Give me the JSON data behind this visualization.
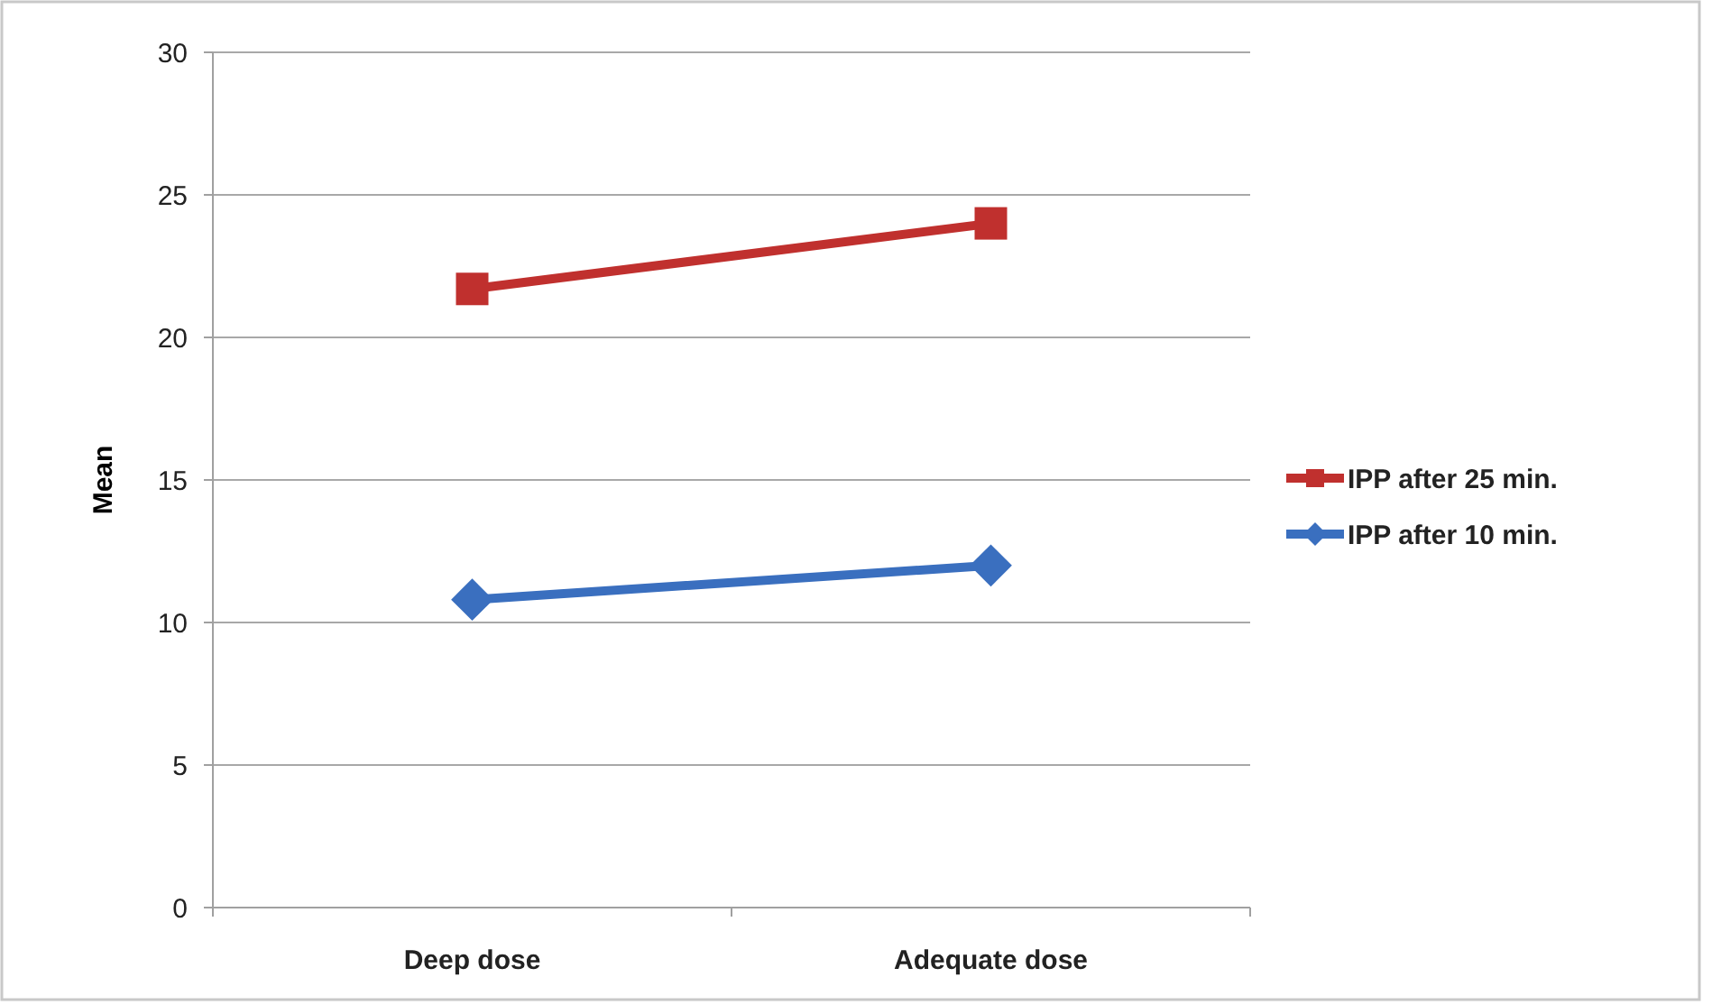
{
  "chart_data": {
    "type": "line",
    "ylabel": "Mean",
    "categories": [
      "Deep dose",
      "Adequate dose"
    ],
    "series": [
      {
        "name": "IPP after 25 min.",
        "color": "#c0302e",
        "values": [
          21.7,
          24.0
        ],
        "marker": "square"
      },
      {
        "name": "IPP after 10 min.",
        "color": "#3a6fbf",
        "values": [
          10.8,
          12.0
        ],
        "marker": "diamond"
      }
    ],
    "ylim": [
      0,
      30
    ],
    "yticks": [
      0,
      5,
      10,
      15,
      20,
      25,
      30
    ],
    "grid": "y",
    "legend": "right"
  }
}
